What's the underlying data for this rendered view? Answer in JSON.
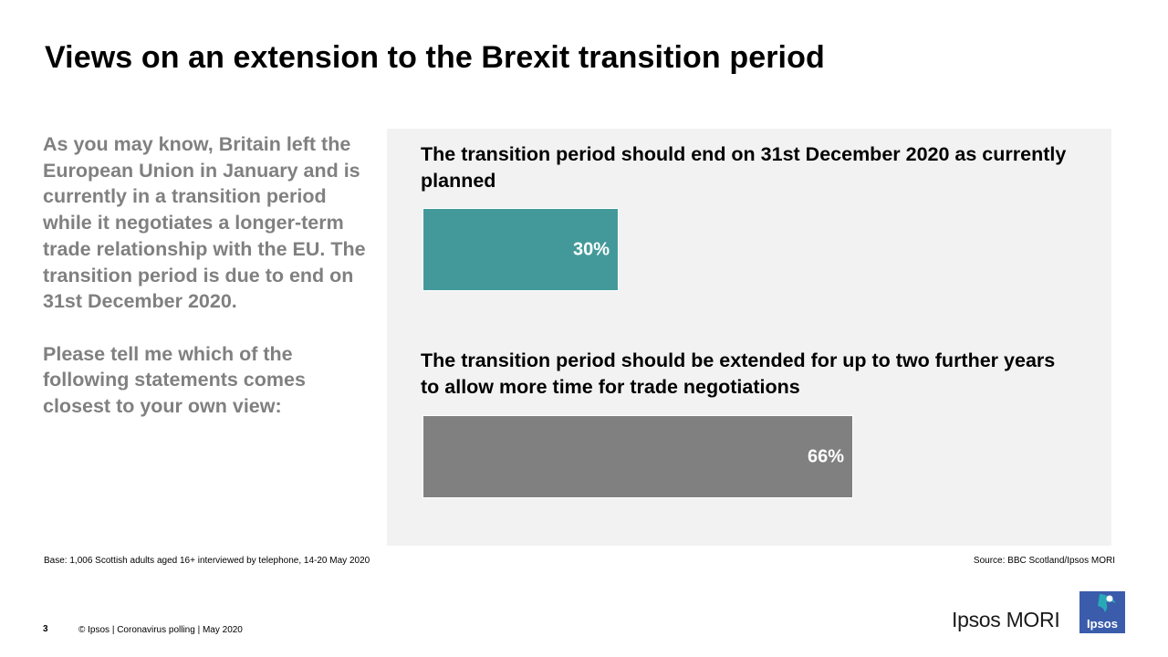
{
  "slide": {
    "title": "Views on an extension to the Brexit transition period",
    "question_intro": "As you may know, Britain left the European Union in January and is currently in a transition period while it negotiates a longer-term trade relationship with the EU. The transition period is due to end on 31st December 2020.",
    "question_prompt": "Please tell me which of the following statements comes closest to your own view:",
    "base_note": "Base: 1,006 Scottish adults aged 16+ interviewed by telephone, 14-20 May 2020",
    "source_note": "Source: BBC Scotland/Ipsos MORI",
    "page_number": "3",
    "footer": "© Ipsos | Coronavirus polling | May 2020",
    "brand": "Ipsos MORI",
    "logo_text": "Ipsos"
  },
  "colors": {
    "bar_end": "#43999a",
    "bar_extend": "#808080",
    "panel_bg": "#f2f2f2",
    "question_text": "#808080",
    "logo_blue": "#3a5cab",
    "logo_teal": "#29a8b8"
  },
  "chart_data": {
    "type": "bar",
    "orientation": "horizontal",
    "categories": [
      "The transition period should end on 31st December 2020 as currently planned",
      "The transition period should be extended for up to two further years to allow more time for trade negotiations"
    ],
    "values": [
      30,
      66
    ],
    "value_labels": [
      "30%",
      "66%"
    ],
    "unit": "%",
    "xlim": [
      0,
      100
    ],
    "title": "",
    "xlabel": "",
    "ylabel": ""
  }
}
